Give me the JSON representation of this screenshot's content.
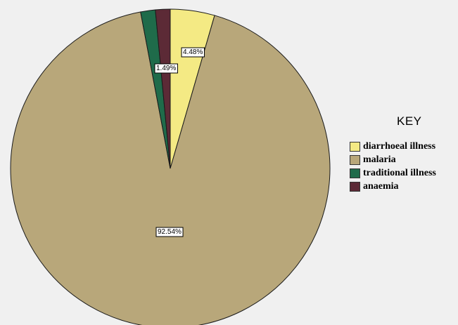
{
  "chart_data": {
    "type": "pie",
    "title": "",
    "legend_title": "KEY",
    "legend_position": "right",
    "slices": [
      {
        "label": "diarrhoeal illness",
        "value": 4.48,
        "value_label": "4.48%",
        "color": "#f4ea84"
      },
      {
        "label": "malaria",
        "value": 92.54,
        "value_label": "92.54%",
        "color": "#b8a77a"
      },
      {
        "label": "traditional illness",
        "value": 1.49,
        "value_label": "1.49%",
        "color": "#1f6b4a"
      },
      {
        "label": "anaemia",
        "value": 1.49,
        "value_label": "",
        "color": "#5c2a36"
      }
    ]
  }
}
